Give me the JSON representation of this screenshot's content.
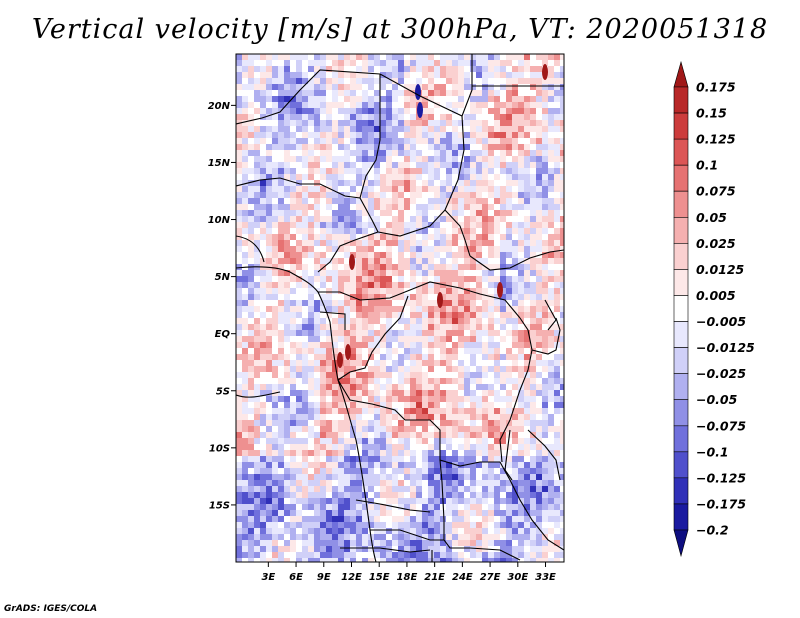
{
  "title": "Vertical velocity [m/s] at 300hPa, VT: 2020051318",
  "credit": "GrADS: IGES/COLA",
  "map": {
    "lat_labels": [
      "20N",
      "15N",
      "10N",
      "5N",
      "EQ",
      "5S",
      "10S",
      "15S"
    ],
    "lon_labels": [
      "3E",
      "6E",
      "9E",
      "12E",
      "15E",
      "18E",
      "21E",
      "24E",
      "27E",
      "30E",
      "33E"
    ]
  },
  "colorbar": {
    "labels": [
      "0.175",
      "0.15",
      "0.125",
      "0.1",
      "0.075",
      "0.05",
      "0.025",
      "0.0125",
      "0.005",
      "−0.005",
      "−0.0125",
      "−0.025",
      "−0.05",
      "−0.075",
      "−0.1",
      "−0.125",
      "−0.175",
      "−0.2"
    ],
    "colors": [
      "#a01818",
      "#b82828",
      "#cc3c3c",
      "#dc5656",
      "#e67272",
      "#ee9090",
      "#f5b0b0",
      "#fad0d0",
      "#fde8e8",
      "#ffffff",
      "#e8e8fd",
      "#d0d0f8",
      "#b0b0f0",
      "#9090e6",
      "#7070dc",
      "#5050cc",
      "#3030b8",
      "#1a1aa0",
      "#0e0e80"
    ]
  }
}
